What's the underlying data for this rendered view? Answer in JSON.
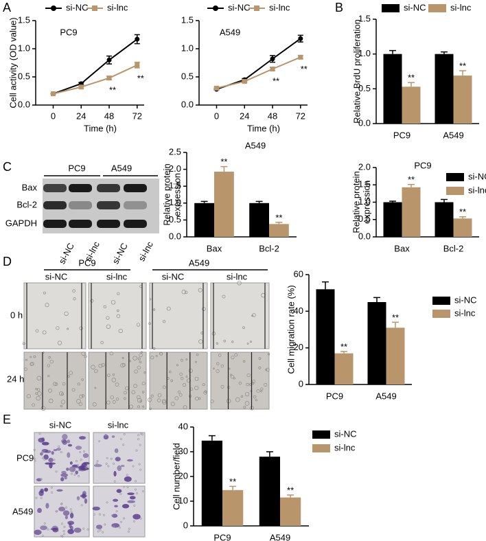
{
  "chart_data": [
    {
      "type": "line",
      "title": "PC9",
      "x": [
        0,
        24,
        48,
        72
      ],
      "xlim": [
        -15,
        78
      ],
      "xticks": [
        0,
        24,
        48,
        72
      ],
      "xlabel": "Time (h)",
      "ylabel": "Cell activity (OD value)",
      "ylim": [
        0,
        1.5
      ],
      "yticks": [
        {
          "value": 0,
          "label": "0.0"
        },
        {
          "value": 0.5,
          "label": "0.5"
        },
        {
          "value": 1,
          "label": "1.0"
        },
        {
          "value": 1.5,
          "label": "1.5"
        }
      ],
      "series": [
        {
          "name": "si-NC",
          "color": "#000000",
          "values": [
            0.2,
            0.38,
            0.8,
            1.17
          ],
          "errors": [
            0.01,
            0.02,
            0.07,
            0.08
          ]
        },
        {
          "name": "si-lnc",
          "color": "#b8956a",
          "values": [
            0.2,
            0.32,
            0.48,
            0.71
          ],
          "errors": [
            0.01,
            0.02,
            0.03,
            0.05
          ],
          "significance": [
            null,
            null,
            "**",
            "**"
          ]
        }
      ]
    },
    {
      "type": "line",
      "title": "A549",
      "x": [
        0,
        24,
        48,
        72
      ],
      "xlim": [
        -15,
        78
      ],
      "xticks": [
        0,
        24,
        48,
        72
      ],
      "xlabel": "Time (h)",
      "ylim": [
        0,
        1.5
      ],
      "yticks": [
        {
          "value": 0,
          "label": "0.0"
        },
        {
          "value": 0.5,
          "label": "0.5"
        },
        {
          "value": 1,
          "label": "1.0"
        },
        {
          "value": 1.5,
          "label": "1.5"
        }
      ],
      "series": [
        {
          "name": "si-NC",
          "color": "#000000",
          "values": [
            0.28,
            0.45,
            0.82,
            1.18
          ],
          "errors": [
            0.01,
            0.02,
            0.06,
            0.06
          ]
        },
        {
          "name": "si-lnc",
          "color": "#b8956a",
          "values": [
            0.3,
            0.42,
            0.64,
            0.85
          ],
          "errors": [
            0.02,
            0.02,
            0.03,
            0.03
          ],
          "significance": [
            null,
            null,
            "**",
            "**"
          ]
        }
      ]
    },
    {
      "type": "bar",
      "categories": [
        "PC9",
        "A549"
      ],
      "ylabel": "Relative BrdU proliferation",
      "ylim": [
        0,
        1.5
      ],
      "yticks": [
        {
          "value": 0,
          "label": "0.0"
        },
        {
          "value": 0.5,
          "label": "0.5"
        },
        {
          "value": 1,
          "label": "1.0"
        },
        {
          "value": 1.5,
          "label": "1.5"
        }
      ],
      "series": [
        {
          "name": "si-NC",
          "color": "#000000",
          "values": [
            1.0,
            1.0
          ],
          "errors": [
            0.05,
            0.03
          ]
        },
        {
          "name": "si-lnc",
          "color": "#b8956a",
          "values": [
            0.53,
            0.69
          ],
          "errors": [
            0.06,
            0.07
          ],
          "significance": [
            "**",
            "**"
          ]
        }
      ]
    },
    {
      "type": "bar",
      "title": "A549",
      "categories": [
        "Bax",
        "Bcl-2"
      ],
      "ylabel": [
        "Relative protein",
        "expression"
      ],
      "ylim": [
        0,
        2.5
      ],
      "yticks": [
        {
          "value": 0,
          "label": "0.0"
        },
        {
          "value": 0.5,
          "label": "0.5"
        },
        {
          "value": 1,
          "label": "1.0"
        },
        {
          "value": 1.5,
          "label": "1.5"
        },
        {
          "value": 2,
          "label": "2.0"
        },
        {
          "value": 2.5,
          "label": "2.5"
        }
      ],
      "series": [
        {
          "name": "si-NC",
          "color": "#000000",
          "values": [
            1.0,
            1.0
          ],
          "errors": [
            0.05,
            0.05
          ]
        },
        {
          "name": "si-lnc",
          "color": "#b8956a",
          "values": [
            1.93,
            0.38
          ],
          "errors": [
            0.15,
            0.05
          ],
          "significance": [
            "**",
            "**"
          ]
        }
      ]
    },
    {
      "type": "bar",
      "title": "PC9",
      "categories": [
        "Bax",
        "Bcl-2"
      ],
      "ylabel": [
        "Relative protein",
        "expression"
      ],
      "ylim": [
        0,
        2.0
      ],
      "yticks": [
        {
          "value": 0,
          "label": "0.0"
        },
        {
          "value": 0.5,
          "label": "0.5"
        },
        {
          "value": 1,
          "label": "1.0"
        },
        {
          "value": 1.5,
          "label": "1.5"
        },
        {
          "value": 2,
          "label": "2.0"
        }
      ],
      "series": [
        {
          "name": "si-NC",
          "color": "#000000",
          "values": [
            1.0,
            1.0
          ],
          "errors": [
            0.03,
            0.08
          ]
        },
        {
          "name": "si-lnc",
          "color": "#b8956a",
          "values": [
            1.43,
            0.53
          ],
          "errors": [
            0.08,
            0.05
          ],
          "significance": [
            "**",
            "**"
          ]
        }
      ]
    },
    {
      "type": "bar",
      "categories": [
        "PC9",
        "A549"
      ],
      "ylabel": "Cell migration rate (%)",
      "ylim": [
        0,
        60
      ],
      "yticks": [
        0,
        20,
        40,
        60
      ],
      "series": [
        {
          "name": "si-NC",
          "color": "#000000",
          "values": [
            52,
            45
          ],
          "errors": [
            4,
            2.5
          ]
        },
        {
          "name": "si-lnc",
          "color": "#b8956a",
          "values": [
            17,
            31
          ],
          "errors": [
            1,
            3
          ],
          "significance": [
            "**",
            "**"
          ]
        }
      ]
    },
    {
      "type": "bar",
      "categories": [
        "PC9",
        "A549"
      ],
      "ylabel": "Cell number/field",
      "ylim": [
        0,
        40
      ],
      "yticks": [
        0,
        10,
        20,
        30,
        40
      ],
      "series": [
        {
          "name": "si-NC",
          "color": "#000000",
          "values": [
            34.5,
            28
          ],
          "errors": [
            2,
            2
          ]
        },
        {
          "name": "si-lnc",
          "color": "#b8956a",
          "values": [
            14.5,
            11.5
          ],
          "errors": [
            1.5,
            1
          ],
          "significance": [
            "**",
            "**"
          ]
        }
      ]
    }
  ],
  "figure": {
    "panel_labels": [
      "A",
      "B",
      "C",
      "D",
      "E"
    ],
    "blot": {
      "cell_lines": [
        "PC9",
        "A549"
      ],
      "proteins": [
        "Bax",
        "Bcl-2",
        "GAPDH"
      ],
      "lanes": [
        "si-NC",
        "si-lnc",
        "si-NC",
        "si-lnc"
      ]
    },
    "wound": {
      "cell_lines": [
        "PC9",
        "A549"
      ],
      "groups": [
        "si-NC",
        "si-lnc",
        "si-NC",
        "si-lnc"
      ],
      "times": [
        "0 h",
        "24 h"
      ]
    },
    "transwell": {
      "groups": [
        "si-NC",
        "si-lnc"
      ],
      "cell_lines": [
        "PC9",
        "A549"
      ]
    }
  }
}
